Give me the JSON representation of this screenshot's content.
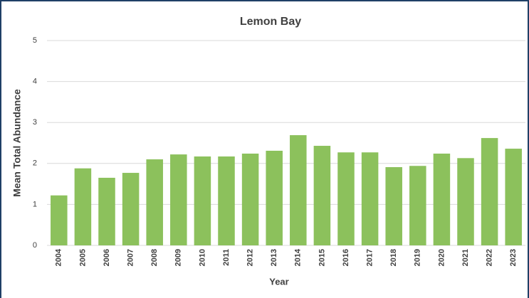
{
  "chart_data": {
    "type": "bar",
    "title": "Lemon Bay",
    "x_label": "Year",
    "y_label": "Mean Total Abundance",
    "categories": [
      "2004",
      "2005",
      "2006",
      "2007",
      "2008",
      "2009",
      "2010",
      "2011",
      "2012",
      "2013",
      "2014",
      "2015",
      "2016",
      "2017",
      "2018",
      "2019",
      "2020",
      "2021",
      "2022",
      "2023"
    ],
    "values": [
      1.22,
      1.88,
      1.65,
      1.77,
      2.1,
      2.22,
      2.17,
      2.17,
      2.24,
      2.31,
      2.69,
      2.43,
      2.27,
      2.27,
      1.91,
      1.94,
      2.24,
      2.13,
      2.62,
      2.36
    ],
    "color": "#8cc15c",
    "ylim": [
      0,
      5
    ],
    "yticks": [
      0,
      1,
      2,
      3,
      4,
      5
    ],
    "grid": true
  }
}
